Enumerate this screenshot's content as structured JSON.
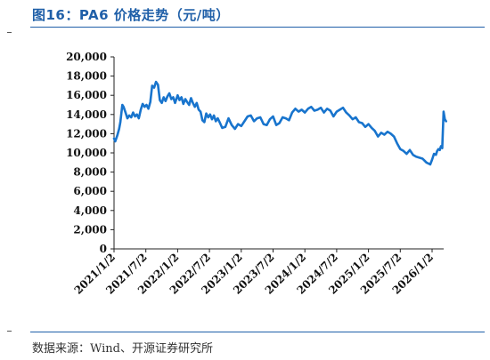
{
  "title": "图16：PA6 价格走势（元/吨）",
  "source": "数据来源：Wind、开源证券研究所",
  "colors": {
    "accent": "#1f5fa8",
    "line": "#1874cd"
  },
  "chart_data": {
    "type": "line",
    "title": "PA6 价格走势（元/吨）",
    "xlabel": "",
    "ylabel": "",
    "ylim": [
      0,
      20000
    ],
    "y_ticks": [
      "0",
      "2,000",
      "4,000",
      "6,000",
      "8,000",
      "10,000",
      "12,000",
      "14,000",
      "16,000",
      "18,000",
      "20,000"
    ],
    "x_ticks": [
      "2021/1/2",
      "2021/7/2",
      "2022/1/2",
      "2022/7/2",
      "2023/1/2",
      "2023/7/2",
      "2024/1/2",
      "2024/7/2",
      "2025/1/2",
      "2025/7/2",
      "2026/1/2"
    ],
    "grid": false,
    "legend": "none",
    "series": [
      {
        "x": [
          2021.0,
          2021.02,
          2021.05,
          2021.08,
          2021.1,
          2021.13,
          2021.15,
          2021.18,
          2021.21,
          2021.24,
          2021.27,
          2021.3,
          2021.33,
          2021.36,
          2021.39,
          2021.42,
          2021.45,
          2021.48,
          2021.51,
          2021.54,
          2021.57,
          2021.6,
          2021.63,
          2021.66,
          2021.69,
          2021.72,
          2021.75,
          2021.78,
          2021.81,
          2021.84,
          2021.87,
          2021.9,
          2021.93,
          2021.96,
          2022.0,
          2022.03,
          2022.06,
          2022.09,
          2022.12,
          2022.15,
          2022.18,
          2022.21,
          2022.24,
          2022.27,
          2022.3,
          2022.33,
          2022.36,
          2022.39,
          2022.42,
          2022.45,
          2022.48,
          2022.51,
          2022.54,
          2022.57,
          2022.6,
          2022.63,
          2022.66,
          2022.7,
          2022.75,
          2022.8,
          2022.85,
          2022.9,
          2022.95,
          2023.0,
          2023.05,
          2023.1,
          2023.15,
          2023.2,
          2023.25,
          2023.3,
          2023.35,
          2023.4,
          2023.45,
          2023.5,
          2023.55,
          2023.6,
          2023.65,
          2023.7,
          2023.75,
          2023.8,
          2023.85,
          2023.9,
          2023.95,
          2024.0,
          2024.05,
          2024.1,
          2024.15,
          2024.2,
          2024.25,
          2024.3,
          2024.35,
          2024.4,
          2024.45,
          2024.5,
          2024.55,
          2024.6,
          2024.65,
          2024.7,
          2024.75,
          2024.8,
          2024.85,
          2024.9,
          2024.95,
          2025.0,
          2025.05,
          2025.1,
          2025.15,
          2025.2,
          2025.25,
          2025.3,
          2025.35,
          2025.4,
          2025.45,
          2025.5,
          2025.55,
          2025.6,
          2025.65,
          2025.7,
          2025.75,
          2025.8,
          2025.85,
          2025.88,
          2025.91,
          2025.94,
          2025.97,
          2026.0,
          2026.03,
          2026.06,
          2026.08,
          2026.1,
          2026.12,
          2026.14,
          2026.16,
          2026.18,
          2026.2,
          2026.22
        ],
        "values": [
          11500,
          11200,
          11800,
          12500,
          13200,
          15000,
          14800,
          14200,
          13600,
          13900,
          13700,
          14200,
          13800,
          14000,
          13600,
          14500,
          15100,
          14800,
          15000,
          14600,
          15300,
          17000,
          16800,
          17400,
          17100,
          15500,
          15200,
          15800,
          15400,
          15900,
          16200,
          15600,
          15800,
          15200,
          16000,
          15500,
          15800,
          15100,
          15600,
          15300,
          15000,
          15700,
          15200,
          14800,
          15200,
          14500,
          14300,
          13400,
          13200,
          14100,
          13700,
          14000,
          13500,
          13900,
          13300,
          13600,
          13200,
          12600,
          12700,
          13600,
          12900,
          12500,
          13000,
          12800,
          13300,
          13800,
          13900,
          13300,
          13600,
          13700,
          13000,
          12900,
          13500,
          13800,
          12900,
          13100,
          13700,
          13600,
          13400,
          14200,
          14600,
          14300,
          14500,
          14200,
          14600,
          14800,
          14400,
          14500,
          14700,
          14200,
          14600,
          14400,
          13800,
          14300,
          14500,
          14700,
          14200,
          13900,
          13500,
          13700,
          13200,
          13100,
          12700,
          13000,
          12600,
          12300,
          11700,
          12100,
          11900,
          12200,
          12000,
          11700,
          11000,
          10400,
          10200,
          9900,
          10300,
          9800,
          9600,
          9500,
          9400,
          9200,
          9000,
          8900,
          8800,
          9300,
          9900,
          9800,
          10200,
          10400,
          10300,
          10700,
          10500,
          14300,
          13500,
          13300
        ]
      }
    ]
  }
}
